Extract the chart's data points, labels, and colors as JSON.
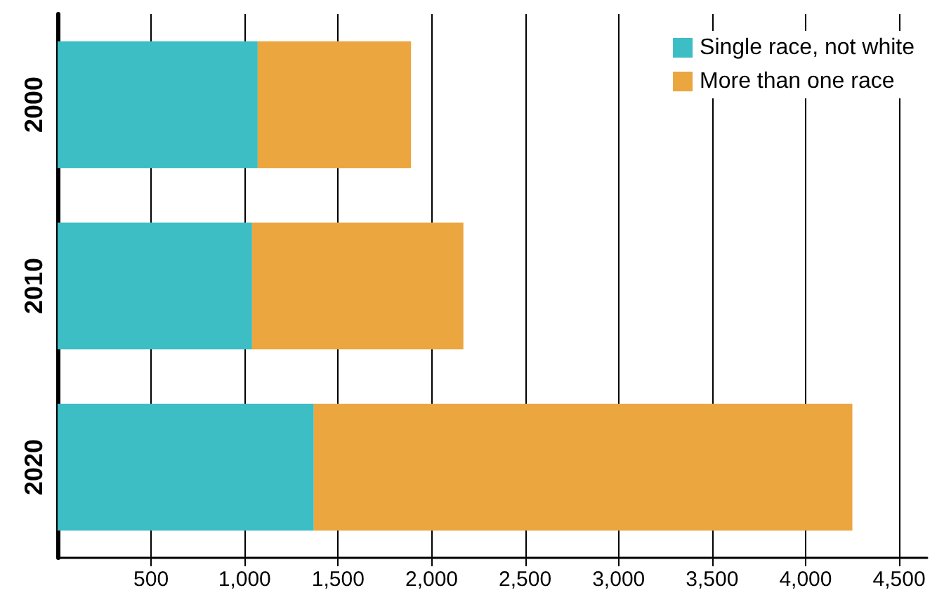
{
  "chart_data": {
    "type": "bar",
    "orientation": "horizontal",
    "stacked": true,
    "categories": [
      "2000",
      "2010",
      "2020"
    ],
    "series": [
      {
        "name": "Single race, not white",
        "color": "#3dbdc4",
        "values": [
          1070,
          1040,
          1370
        ]
      },
      {
        "name": "More than one race",
        "color": "#eba640",
        "values": [
          820,
          1130,
          2880
        ]
      }
    ],
    "xlim": [
      0,
      4650
    ],
    "xticks": [
      500,
      {
        "value": 1000,
        "label": "1,000"
      },
      {
        "value": 1500,
        "label": "1,500"
      },
      {
        "value": 2000,
        "label": "2,000"
      },
      {
        "value": 2500,
        "label": "2,500"
      },
      {
        "value": 3000,
        "label": "3,000"
      },
      {
        "value": 3500,
        "label": "3,500"
      },
      {
        "value": 4000,
        "label": "4,000"
      },
      {
        "value": 4500,
        "label": "4,500"
      }
    ],
    "grid": "x",
    "legend": "top right"
  }
}
